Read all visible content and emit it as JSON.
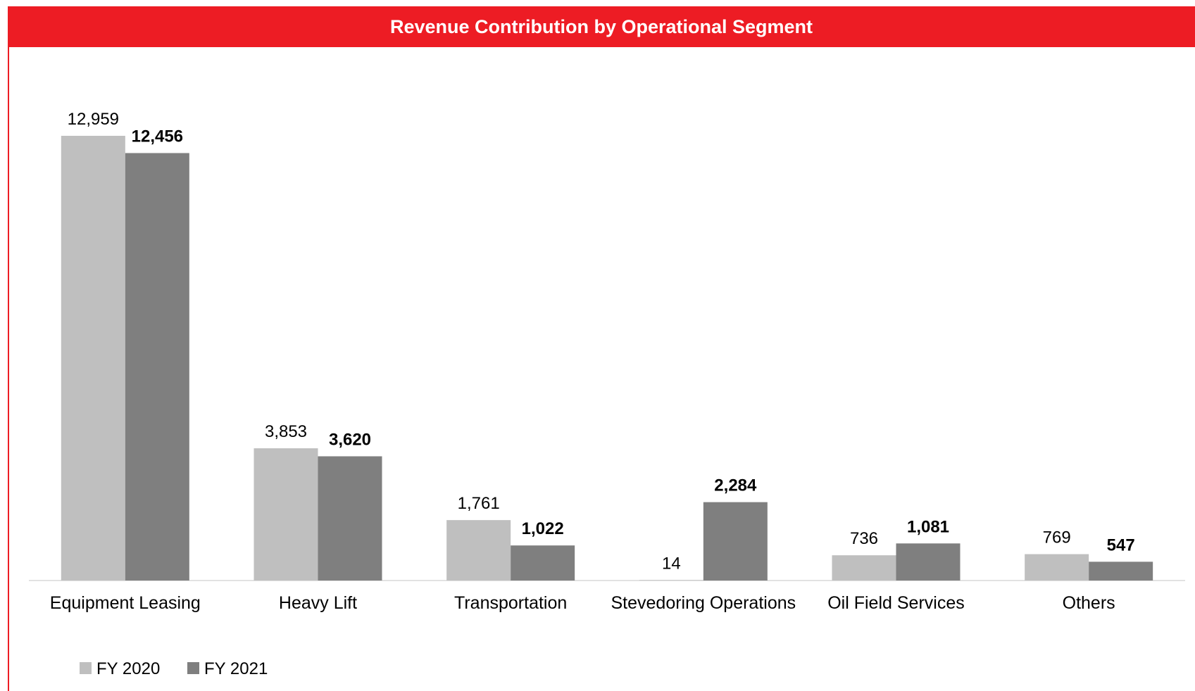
{
  "chart_data": {
    "type": "bar",
    "title": "Revenue Contribution by Operational Segment",
    "categories": [
      "Equipment Leasing",
      "Heavy Lift",
      "Transportation",
      "Stevedoring Operations",
      "Oil Field Services",
      "Others"
    ],
    "series": [
      {
        "name": "FY 2020",
        "color": "#bfbfbf",
        "values": [
          12959,
          3853,
          1761,
          14,
          736,
          769
        ],
        "value_labels": [
          "12,959",
          "3,853",
          "1,761",
          "14",
          "736",
          "769"
        ]
      },
      {
        "name": "FY 2021",
        "color": "#7f7f7f",
        "values": [
          12456,
          3620,
          1022,
          2284,
          1081,
          547
        ],
        "value_labels": [
          "12,456",
          "3,620",
          "1,022",
          "2,284",
          "1,081",
          "547"
        ]
      }
    ],
    "legend": "bottom-left"
  }
}
